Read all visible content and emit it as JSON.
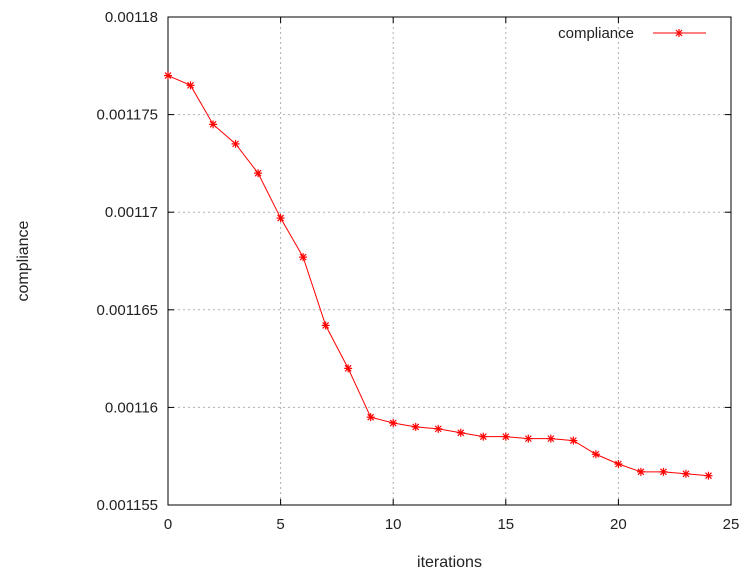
{
  "chart_data": {
    "type": "line",
    "title": "",
    "xlabel": "iterations",
    "ylabel": "compliance",
    "xlim": [
      0,
      25
    ],
    "ylim": [
      0.001155,
      0.00118
    ],
    "xticks": [
      0,
      5,
      10,
      15,
      20,
      25
    ],
    "xtick_labels": [
      "0",
      "5",
      "10",
      "15",
      "20",
      "25"
    ],
    "yticks": [
      0.001155,
      0.00116,
      0.001165,
      0.00117,
      0.001175,
      0.00118
    ],
    "ytick_labels": [
      "0.001155",
      "0.00116",
      "0.001165",
      "0.00117",
      "0.001175",
      "0.00118"
    ],
    "grid": true,
    "legend_position": "top-right",
    "series": [
      {
        "name": "compliance",
        "color": "#ff0000",
        "marker": "asterisk",
        "x": [
          0,
          1,
          2,
          3,
          4,
          5,
          6,
          7,
          8,
          9,
          10,
          11,
          12,
          13,
          14,
          15,
          16,
          17,
          18,
          19,
          20,
          21,
          22,
          23,
          24
        ],
        "y": [
          0.001177,
          0.0011765,
          0.0011745,
          0.0011735,
          0.001172,
          0.0011697,
          0.0011677,
          0.0011642,
          0.001162,
          0.0011595,
          0.0011592,
          0.001159,
          0.0011589,
          0.0011587,
          0.0011585,
          0.0011585,
          0.0011584,
          0.0011584,
          0.0011583,
          0.0011576,
          0.0011571,
          0.0011567,
          0.0011567,
          0.0011566,
          0.0011565
        ]
      }
    ]
  }
}
